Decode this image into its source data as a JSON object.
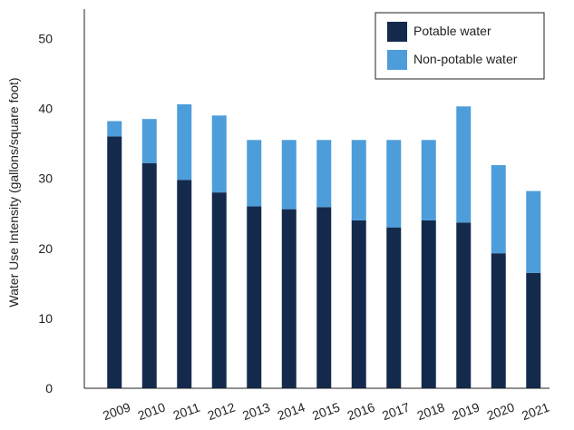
{
  "chart_data": {
    "type": "bar",
    "stacked": true,
    "categories": [
      "2009",
      "2010",
      "2011",
      "2012",
      "2013",
      "2014",
      "2015",
      "2016",
      "2017",
      "2018",
      "2019",
      "2020",
      "2021"
    ],
    "series": [
      {
        "name": "Potable water",
        "color": "#142a4d",
        "values": [
          36,
          32.2,
          29.8,
          28,
          26,
          25.6,
          25.9,
          24,
          23,
          24,
          23.7,
          19.3,
          16.5
        ]
      },
      {
        "name": "Non-potable water",
        "color": "#4d9ddb",
        "values": [
          2.2,
          6.3,
          10.8,
          11,
          9.5,
          9.9,
          9.6,
          11.5,
          12.5,
          11.5,
          16.6,
          12.6,
          11.7
        ]
      }
    ],
    "ylabel": "Water Use Intensity (gallons/square foot)",
    "xlabel": "",
    "title": "",
    "ylim": [
      0,
      55
    ],
    "yticks": [
      0,
      10,
      20,
      30,
      40,
      50
    ],
    "grid": false,
    "legend_position": "top-right"
  }
}
